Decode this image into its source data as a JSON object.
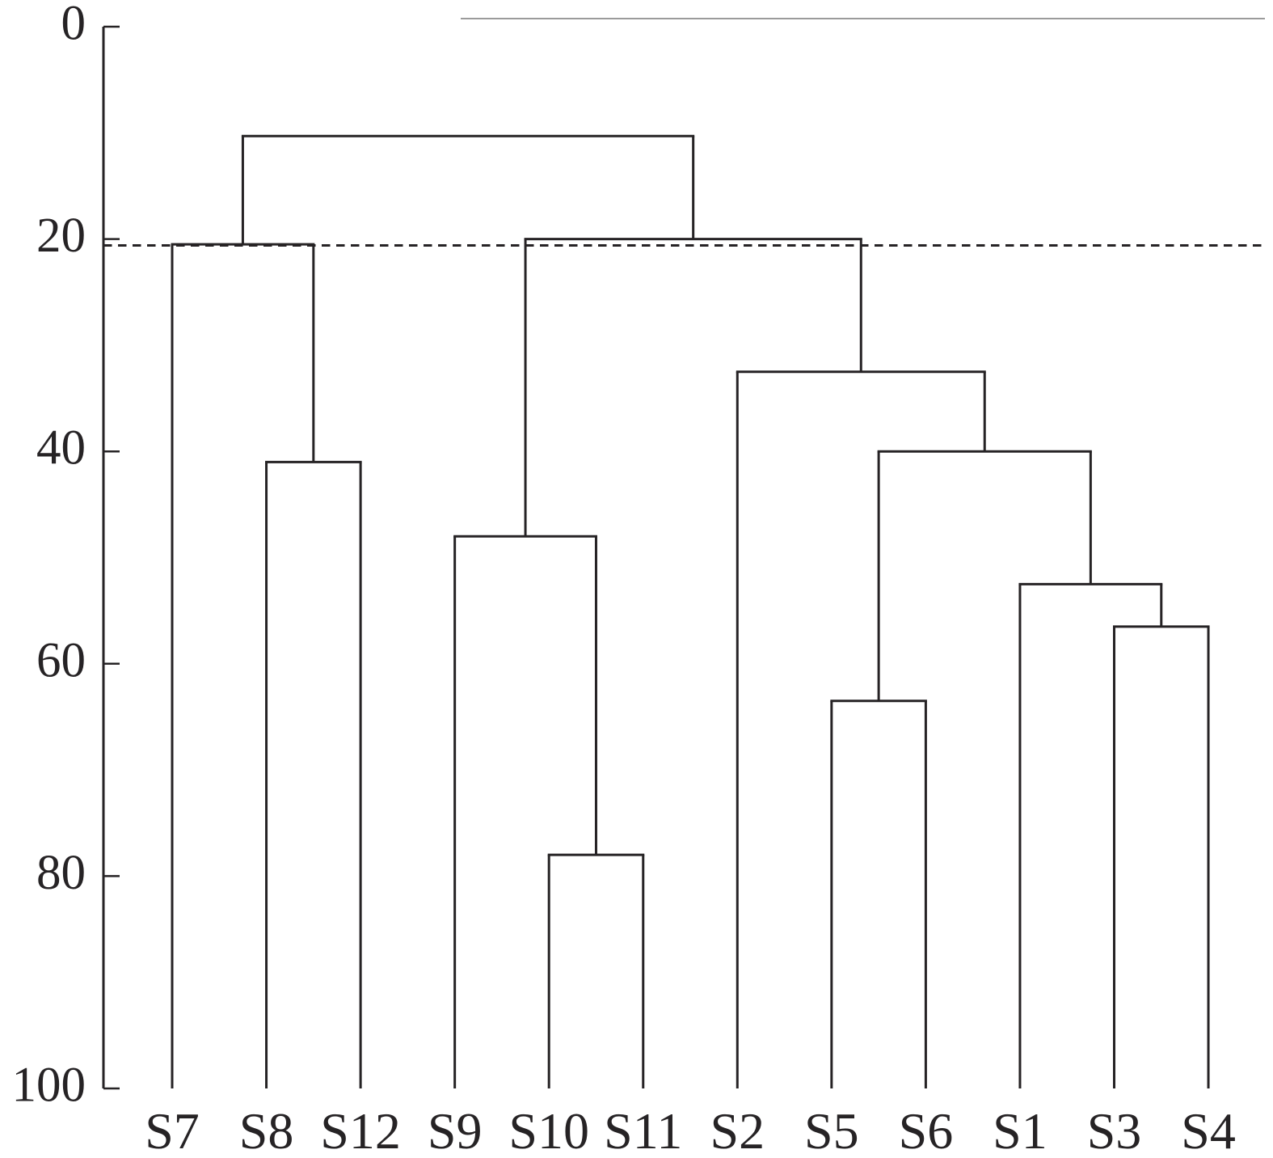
{
  "figure": {
    "kind": "dendrogram-figure",
    "background_color": "#ffffff"
  },
  "colors": {
    "line": "#262325",
    "cut_line": "#262325",
    "top_border_line": "#9b9b9b",
    "text": "#262325"
  },
  "y_axis": {
    "tick_labels": [
      "0",
      "20",
      "40",
      "60",
      "80",
      "100"
    ],
    "tick_values": [
      0,
      20,
      40,
      60,
      80,
      100
    ],
    "min": 0,
    "max": 100,
    "direction": "increasing-downward"
  },
  "leaf_labels": [
    "S7",
    "S8",
    "S12",
    "S9",
    "S10",
    "S11",
    "S2",
    "S5",
    "S6",
    "S1",
    "S3",
    "S4"
  ],
  "chart_data": {
    "type": "dendrogram",
    "orientation": "top-down",
    "title": "",
    "xlabel": "",
    "ylabel": "",
    "ylim": [
      0,
      100
    ],
    "grid": false,
    "leaf_order": [
      "S7",
      "S8",
      "S12",
      "S9",
      "S10",
      "S11",
      "S2",
      "S5",
      "S6",
      "S1",
      "S3",
      "S4"
    ],
    "leaf_baseline_value": 100,
    "merges": [
      {
        "id": "m1",
        "a": "S8",
        "b": "S12",
        "height": 41
      },
      {
        "id": "m2",
        "a": "S10",
        "b": "S11",
        "height": 78
      },
      {
        "id": "m3",
        "a": "S9",
        "b": "m2",
        "height": 48
      },
      {
        "id": "m4",
        "a": "S7",
        "b": "m1",
        "height": 20.5
      },
      {
        "id": "m5",
        "a": "S5",
        "b": "S6",
        "height": 63.5
      },
      {
        "id": "m6",
        "a": "S3",
        "b": "S4",
        "height": 56.5
      },
      {
        "id": "m7",
        "a": "S1",
        "b": "m6",
        "height": 52.5
      },
      {
        "id": "m8",
        "a": "m5",
        "b": "m7",
        "height": 40
      },
      {
        "id": "m9",
        "a": "S2",
        "b": "m8",
        "height": 32.5
      },
      {
        "id": "m10",
        "a": "m3",
        "b": "m9",
        "height": 20
      },
      {
        "id": "m11",
        "a": "m4",
        "b": "m10",
        "height": 10.3
      }
    ],
    "cut_line": {
      "value": 20.6,
      "style": "dashed"
    },
    "legend": null
  }
}
